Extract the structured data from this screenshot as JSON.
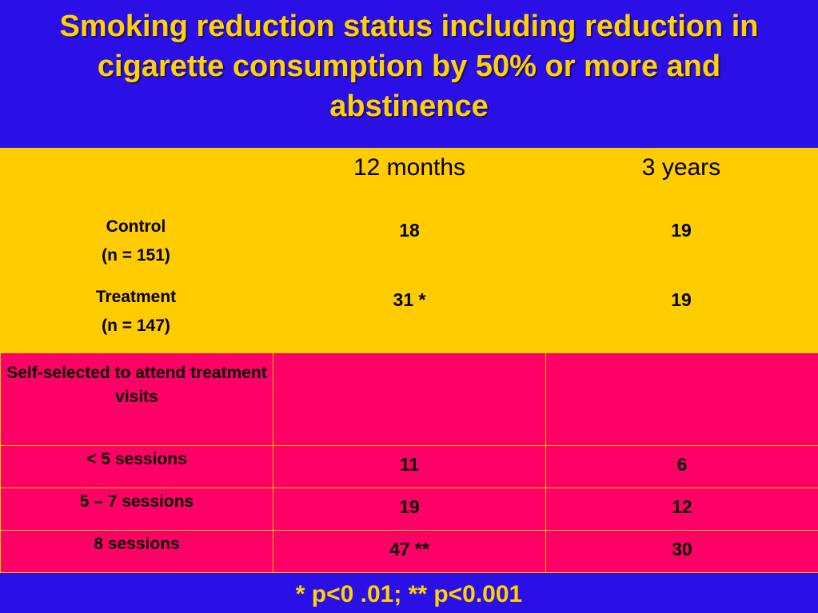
{
  "slide": {
    "title_lines": [
      "Smoking reduction status including reduction in",
      "cigarette consumption by 50% or more and",
      "abstinence"
    ],
    "columns": [
      "12 months",
      "3 years"
    ],
    "group_rows": [
      {
        "label": "Control",
        "sublabel": "(n = 151)",
        "m12": "18",
        "y3": "19"
      },
      {
        "label": "Treatment",
        "sublabel": "(n = 147)",
        "m12": "31 *",
        "y3": "19"
      }
    ],
    "self_selected": {
      "header": "Self-selected to attend treatment visits",
      "rows": [
        {
          "label": "< 5 sessions",
          "m12": "11",
          "y3": "6"
        },
        {
          "label": "5 – 7 sessions",
          "m12": "19",
          "y3": "12"
        },
        {
          "label": "8 sessions",
          "m12": "47 **",
          "y3": "30"
        }
      ]
    },
    "footnote": "* p<0 .01; ** p<0.001",
    "colors": {
      "background": "#2a0fe6",
      "title": "#ffd200",
      "yellow_panel": "#ffcc00",
      "pink_panel": "#ff0066"
    }
  }
}
